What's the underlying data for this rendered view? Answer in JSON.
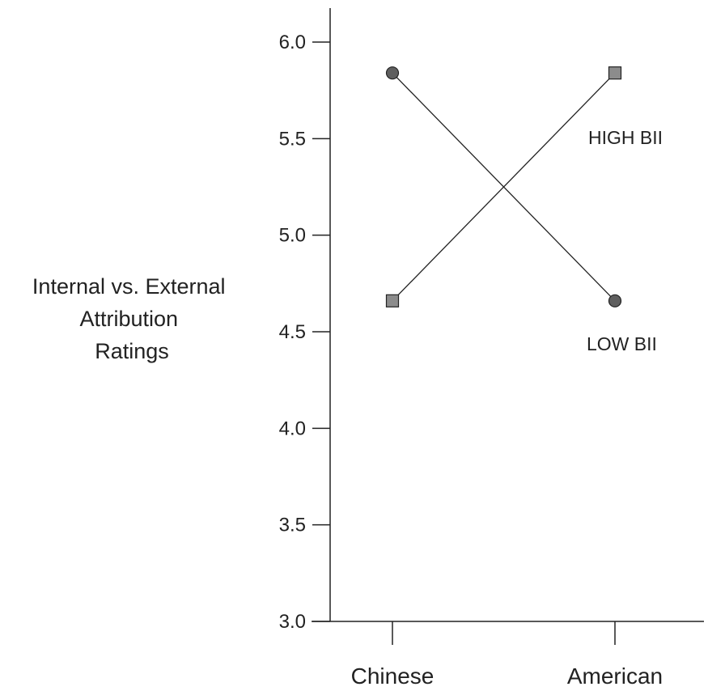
{
  "chart_data": {
    "type": "line",
    "categories": [
      "Chinese",
      "American"
    ],
    "ylabel": [
      "Internal vs. External",
      "Attribution",
      "Ratings"
    ],
    "ylim": [
      3.0,
      6.0
    ],
    "yticks": [
      "6.0",
      "5.5",
      "5.0",
      "4.5",
      "4.0",
      "3.5",
      "3.0"
    ],
    "ytick_values": [
      6.0,
      5.5,
      5.0,
      4.5,
      4.0,
      3.5,
      3.0
    ],
    "grid": false,
    "series": [
      {
        "name": "LOW BII",
        "marker": "circle",
        "values": [
          5.84,
          4.66
        ],
        "color": "#5f5f5f"
      },
      {
        "name": "HIGH BII",
        "marker": "square",
        "values": [
          4.66,
          5.84
        ],
        "color": "#8c8c8c"
      }
    ]
  }
}
